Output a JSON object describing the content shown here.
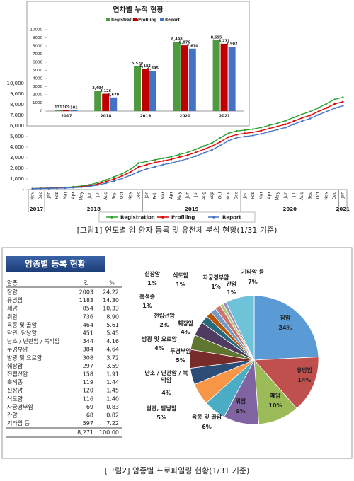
{
  "chart_data": [
    {
      "type": "line",
      "categories": [
        "Nov",
        "Dec",
        "Jan",
        "Feb",
        "Mar",
        "Apr",
        "May",
        "Jun",
        "Jul",
        "Aug",
        "Sep",
        "Oct",
        "Nov",
        "Dec",
        "Jan",
        "Feb",
        "Mar",
        "Apr",
        "May",
        "Jun",
        "Jul",
        "Aug",
        "Sep",
        "Oct",
        "Nov",
        "Dec",
        "Jan",
        "Feb",
        "Mar",
        "Apr",
        "May",
        "Jun",
        "Jul",
        "Aug",
        "Sep",
        "Oct",
        "Nov",
        "Dec",
        "Jan"
      ],
      "x_groups": [
        {
          "label": "2017",
          "count": 2
        },
        {
          "label": "2018",
          "count": 12
        },
        {
          "label": "2019",
          "count": 12
        },
        {
          "label": "2020",
          "count": 12
        },
        {
          "label": "2021",
          "count": 1
        }
      ],
      "series": [
        {
          "name": "Registration",
          "color": "#2ca02c",
          "values": [
            100,
            131,
            150,
            170,
            200,
            260,
            330,
            450,
            650,
            900,
            1200,
            1500,
            1900,
            2494,
            2650,
            2800,
            2950,
            3100,
            3300,
            3500,
            3800,
            4100,
            4400,
            4900,
            5300,
            5520,
            5600,
            5700,
            5850,
            6050,
            6250,
            6500,
            6800,
            7100,
            7350,
            7700,
            8100,
            8498,
            8695
          ]
        },
        {
          "name": "Profiling",
          "color": "#e00000",
          "values": [
            90,
            109,
            120,
            140,
            165,
            210,
            270,
            360,
            520,
            740,
            1000,
            1300,
            1650,
            2126,
            2350,
            2550,
            2700,
            2850,
            3050,
            3250,
            3500,
            3800,
            4100,
            4500,
            4950,
            5183,
            5300,
            5400,
            5550,
            5750,
            5950,
            6150,
            6450,
            6750,
            7000,
            7350,
            7700,
            8076,
            8271
          ]
        },
        {
          "name": "Report",
          "color": "#4472c4",
          "values": [
            80,
            101,
            110,
            125,
            145,
            180,
            230,
            300,
            420,
            600,
            820,
            1050,
            1350,
            1670,
            1950,
            2150,
            2350,
            2500,
            2700,
            2900,
            3150,
            3450,
            3750,
            4150,
            4600,
            4895,
            5000,
            5100,
            5250,
            5450,
            5650,
            5850,
            6150,
            6450,
            6700,
            7050,
            7350,
            7670,
            7902
          ]
        }
      ],
      "ylim": [
        0,
        10000
      ],
      "yticks": [
        {
          "value": 0,
          "label": "-"
        },
        {
          "value": 1000,
          "label": "1,000"
        },
        {
          "value": 2000,
          "label": "2,000"
        },
        {
          "value": 3000,
          "label": "3,000"
        },
        {
          "value": 4000,
          "label": "4,000"
        },
        {
          "value": 5000,
          "label": "5,000"
        },
        {
          "value": 6000,
          "label": "6,000"
        },
        {
          "value": 7000,
          "label": "7,000"
        },
        {
          "value": 8000,
          "label": "8,000"
        },
        {
          "value": 9000,
          "label": "9,000"
        },
        {
          "value": 10000,
          "label": "10,000"
        }
      ],
      "grid": false,
      "legend": "bottom"
    },
    {
      "type": "bar",
      "title": "연차별 누적 현황",
      "categories": [
        "2017",
        "2018",
        "2019",
        "2020",
        "2021"
      ],
      "series": [
        {
          "name": "Registration",
          "color": "#4e9a3f",
          "values": [
            131,
            2494,
            5520,
            8498,
            8695
          ],
          "value_labels": [
            "131",
            "2,494",
            "5,520",
            "8,498",
            "8,695"
          ]
        },
        {
          "name": "Profiling",
          "color": "#c00000",
          "values": [
            109,
            2126,
            5183,
            8076,
            8271
          ],
          "value_labels": [
            "109",
            "2,126",
            "5,183",
            "8,076",
            "8,271"
          ]
        },
        {
          "name": "Report",
          "color": "#4472c4",
          "values": [
            101,
            1670,
            4895,
            7670,
            7902
          ],
          "value_labels": [
            "101",
            "1,670",
            "4,895",
            "7,670",
            "7,902"
          ]
        }
      ],
      "ylim": [
        0,
        10000
      ],
      "yticks": [
        0,
        1000,
        2000,
        3000,
        4000,
        5000,
        6000,
        7000,
        8000,
        9000,
        10000
      ],
      "grid": false,
      "legend": "top"
    },
    {
      "type": "pie",
      "categories": [
        "장암",
        "유방암",
        "폐암",
        "위암",
        "육종 및 골암",
        "담관, 담낭암",
        "난소 / 난관암 / 복막암",
        "두경부암",
        "방광 및 요로암",
        "췌장암",
        "전립선암",
        "흑색종",
        "신장암",
        "식도암",
        "자궁경부암",
        "간암",
        "기타암 등"
      ],
      "values": [
        24.22,
        14.3,
        10.33,
        8.9,
        5.61,
        5.45,
        4.16,
        4.64,
        3.72,
        3.59,
        1.91,
        1.44,
        1.45,
        1.4,
        0.83,
        0.82,
        7.22
      ],
      "value_labels": [
        "24%",
        "14%",
        "10%",
        "9%",
        "6%",
        "5%",
        "4%",
        "5%",
        "4%",
        "4%",
        "2%",
        "1%",
        "1%",
        "1%",
        "1%",
        "1%",
        "7%"
      ],
      "colors": [
        "#5b9bd5",
        "#c0504d",
        "#9bbb59",
        "#8064a2",
        "#4bacc6",
        "#f79646",
        "#2c4d75",
        "#772c2a",
        "#5f7530",
        "#4d3b62",
        "#276a7c",
        "#b65708",
        "#729aca",
        "#cd7371",
        "#afc97a",
        "#a18db9",
        "#6fc3d8"
      ]
    }
  ],
  "table": {
    "title": "암종별 등록 현황",
    "columns": [
      "암종",
      "건",
      "%"
    ],
    "rows": [
      [
        "장암",
        "2003",
        "24.22"
      ],
      [
        "유방암",
        "1183",
        "14.30"
      ],
      [
        "폐암",
        "854",
        "10.33"
      ],
      [
        "위암",
        "736",
        "8.90"
      ],
      [
        "육종 및 골암",
        "464",
        "5.61"
      ],
      [
        "담관, 담낭암",
        "451",
        "5.45"
      ],
      [
        "난소 / 난관암 / 복막암",
        "344",
        "4.16"
      ],
      [
        "두경부암",
        "384",
        "4.64"
      ],
      [
        "방광 및 요로암",
        "308",
        "3.72"
      ],
      [
        "췌장암",
        "297",
        "3.59"
      ],
      [
        "전립선암",
        "158",
        "1.91"
      ],
      [
        "흑색종",
        "119",
        "1.44"
      ],
      [
        "신장암",
        "120",
        "1.45"
      ],
      [
        "식도암",
        "116",
        "1.40"
      ],
      [
        "자궁경부암",
        "69",
        "0.83"
      ],
      [
        "간암",
        "68",
        "0.82"
      ],
      [
        "기타암 등",
        "597",
        "7.22"
      ]
    ],
    "total": [
      "8,271",
      "100.00"
    ]
  },
  "captions": [
    "[그림1] 연도별 암 환자 등록 및 유전체 분석 현황(1/31 기준)",
    "[그림2] 암종별 프로파일링 현황(1/31 기준)"
  ]
}
